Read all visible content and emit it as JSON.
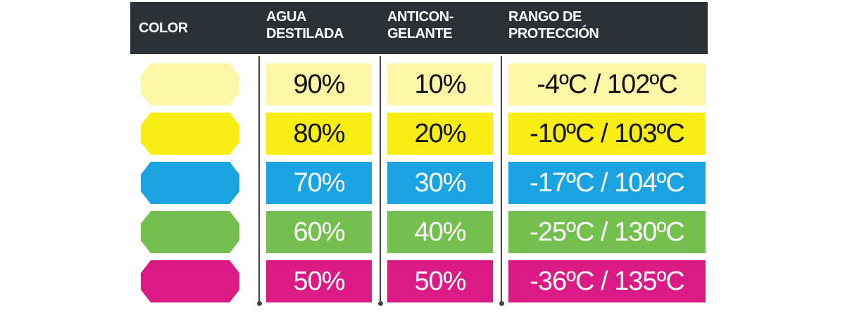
{
  "header": {
    "columns": [
      {
        "lines": [
          "COLOR"
        ]
      },
      {
        "lines": [
          "AGUA",
          "DESTILADA"
        ]
      },
      {
        "lines": [
          "ANTICON-",
          "GELANTE"
        ]
      },
      {
        "lines": [
          "RANGO DE",
          "PROTECCIÓN"
        ]
      }
    ]
  },
  "table": {
    "rows": [
      {
        "color": "#fdf6a6",
        "text_color": "#111111",
        "cells": [
          "90%",
          "10%",
          "-4ºC / 102ºC"
        ]
      },
      {
        "color": "#f8ee14",
        "text_color": "#111111",
        "cells": [
          "80%",
          "20%",
          "-10ºC / 103ºC"
        ]
      },
      {
        "color": "#1aa3e2",
        "text_color": "#ffffff",
        "cells": [
          "70%",
          "30%",
          "-17ºC / 104ºC"
        ]
      },
      {
        "color": "#74c04f",
        "text_color": "#ffffff",
        "cells": [
          "60%",
          "40%",
          "-25ºC / 130ºC"
        ]
      },
      {
        "color": "#db1a85",
        "text_color": "#ffffff",
        "cells": [
          "50%",
          "50%",
          "-36ºC / 135ºC"
        ]
      }
    ]
  }
}
